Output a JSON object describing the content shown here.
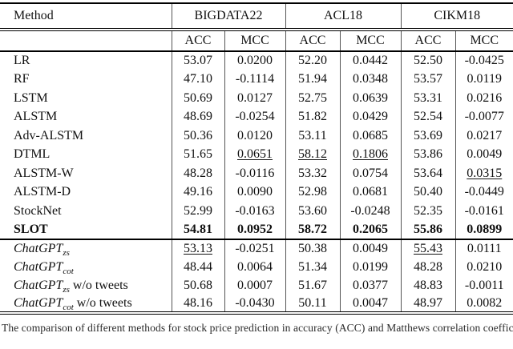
{
  "page": {
    "background": "#ffffff",
    "text_color": "#111111",
    "rule_color": "#000000",
    "divider_color": "#555555"
  },
  "table": {
    "header": {
      "method": "Method",
      "datasets": [
        "BIGDATA22",
        "ACL18",
        "CIKM18"
      ],
      "metrics": [
        "ACC",
        "MCC"
      ]
    },
    "sections": [
      {
        "name": "baseline-models",
        "rows": [
          {
            "method": {
              "text": "LR"
            },
            "cells": [
              {
                "t": "53.07"
              },
              {
                "t": "0.0200"
              },
              {
                "t": "52.20"
              },
              {
                "t": "0.0442"
              },
              {
                "t": "52.50"
              },
              {
                "t": "-0.0425"
              }
            ]
          },
          {
            "method": {
              "text": "RF"
            },
            "cells": [
              {
                "t": "47.10"
              },
              {
                "t": "-0.1114"
              },
              {
                "t": "51.94"
              },
              {
                "t": "0.0348"
              },
              {
                "t": "53.57"
              },
              {
                "t": "0.0119"
              }
            ]
          },
          {
            "method": {
              "text": "LSTM"
            },
            "cells": [
              {
                "t": "50.69"
              },
              {
                "t": "0.0127"
              },
              {
                "t": "52.75"
              },
              {
                "t": "0.0639"
              },
              {
                "t": "53.31"
              },
              {
                "t": "0.0216"
              }
            ]
          },
          {
            "method": {
              "text": "ALSTM"
            },
            "cells": [
              {
                "t": "48.69"
              },
              {
                "t": "-0.0254"
              },
              {
                "t": "51.82"
              },
              {
                "t": "0.0429"
              },
              {
                "t": "52.54"
              },
              {
                "t": "-0.0077"
              }
            ]
          },
          {
            "method": {
              "text": "Adv-ALSTM"
            },
            "cells": [
              {
                "t": "50.36"
              },
              {
                "t": "0.0120"
              },
              {
                "t": "53.11"
              },
              {
                "t": "0.0685"
              },
              {
                "t": "53.69"
              },
              {
                "t": "0.0217"
              }
            ]
          },
          {
            "method": {
              "text": "DTML"
            },
            "cells": [
              {
                "t": "51.65"
              },
              {
                "t": "0.0651",
                "style": "underline"
              },
              {
                "t": "58.12",
                "style": "underline"
              },
              {
                "t": "0.1806",
                "style": "underline"
              },
              {
                "t": "53.86"
              },
              {
                "t": "0.0049"
              }
            ]
          },
          {
            "method": {
              "text": "ALSTM-W"
            },
            "cells": [
              {
                "t": "48.28"
              },
              {
                "t": "-0.0116"
              },
              {
                "t": "53.32"
              },
              {
                "t": "0.0754"
              },
              {
                "t": "53.64"
              },
              {
                "t": "0.0315",
                "style": "underline"
              }
            ]
          },
          {
            "method": {
              "text": "ALSTM-D"
            },
            "cells": [
              {
                "t": "49.16"
              },
              {
                "t": "0.0090"
              },
              {
                "t": "52.98"
              },
              {
                "t": "0.0681"
              },
              {
                "t": "50.40"
              },
              {
                "t": "-0.0449"
              }
            ]
          },
          {
            "method": {
              "text": "StockNet"
            },
            "cells": [
              {
                "t": "52.99"
              },
              {
                "t": "-0.0163"
              },
              {
                "t": "53.60"
              },
              {
                "t": "-0.0248"
              },
              {
                "t": "52.35"
              },
              {
                "t": "-0.0161"
              }
            ]
          },
          {
            "method": {
              "text": "SLOT",
              "bold": true
            },
            "cells": [
              {
                "t": "54.81",
                "style": "bold"
              },
              {
                "t": "0.0952",
                "style": "bold"
              },
              {
                "t": "58.72",
                "style": "bold"
              },
              {
                "t": "0.2065",
                "style": "bold"
              },
              {
                "t": "55.86",
                "style": "bold"
              },
              {
                "t": "0.0899",
                "style": "bold"
              }
            ]
          }
        ]
      },
      {
        "name": "chatgpt-variants",
        "rows": [
          {
            "method": {
              "text": "ChatGPT",
              "sub": "zs",
              "suffix": "",
              "italic": true
            },
            "cells": [
              {
                "t": "53.13",
                "style": "underline"
              },
              {
                "t": "-0.0251"
              },
              {
                "t": "50.38"
              },
              {
                "t": "0.0049"
              },
              {
                "t": "55.43",
                "style": "underline"
              },
              {
                "t": "0.0111"
              }
            ]
          },
          {
            "method": {
              "text": "ChatGPT",
              "sub": "cot",
              "suffix": "",
              "italic": true
            },
            "cells": [
              {
                "t": "48.44"
              },
              {
                "t": "0.0064"
              },
              {
                "t": "51.34"
              },
              {
                "t": "0.0199"
              },
              {
                "t": "48.28"
              },
              {
                "t": "0.0210"
              }
            ]
          },
          {
            "method": {
              "text": "ChatGPT",
              "sub": "zs",
              "suffix": " w/o tweets",
              "italic": true
            },
            "cells": [
              {
                "t": "50.68"
              },
              {
                "t": "0.0007"
              },
              {
                "t": "51.67"
              },
              {
                "t": "0.0377"
              },
              {
                "t": "48.83"
              },
              {
                "t": "-0.0011"
              }
            ]
          },
          {
            "method": {
              "text": "ChatGPT",
              "sub": "cot",
              "suffix": " w/o tweets",
              "italic": true
            },
            "cells": [
              {
                "t": "48.16"
              },
              {
                "t": "-0.0430"
              },
              {
                "t": "50.11"
              },
              {
                "t": "0.0047"
              },
              {
                "t": "48.97"
              },
              {
                "t": "0.0082"
              }
            ]
          }
        ]
      }
    ]
  },
  "caption": {
    "text": "The comparison of different methods for stock price prediction in accuracy (ACC) and Matthews correlation coefficient (MCC)."
  }
}
